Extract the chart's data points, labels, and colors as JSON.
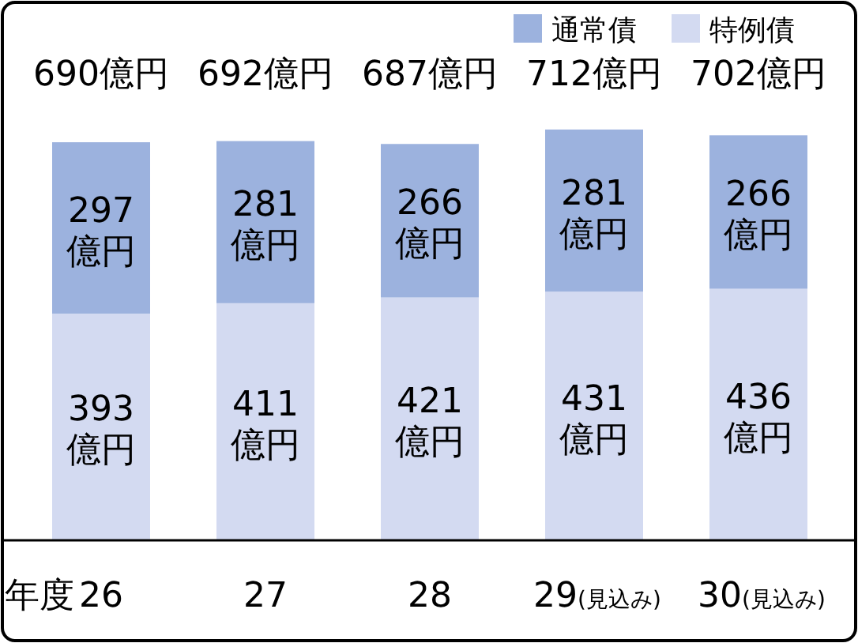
{
  "chart_data": {
    "type": "bar",
    "stacked": true,
    "xlabel": "年度",
    "legend": "top right",
    "categories": [
      "26",
      "27",
      "28",
      "29(見込み)",
      "30(見込み)"
    ],
    "series": [
      {
        "name": "特例債",
        "color": "#d3daf1",
        "values": [
          393,
          411,
          421,
          431,
          436
        ],
        "value_labels": [
          "393億円",
          "411億円",
          "421億円",
          "431億円",
          "436億円"
        ]
      },
      {
        "name": "通常債",
        "color": "#9cb2de",
        "values": [
          297,
          281,
          266,
          281,
          266
        ],
        "value_labels": [
          "297億円",
          "281億円",
          "266億円",
          "281億円",
          "266億円"
        ]
      }
    ],
    "totals": [
      "690億円",
      "692億円",
      "687億円",
      "712億円",
      "702億円"
    ]
  }
}
